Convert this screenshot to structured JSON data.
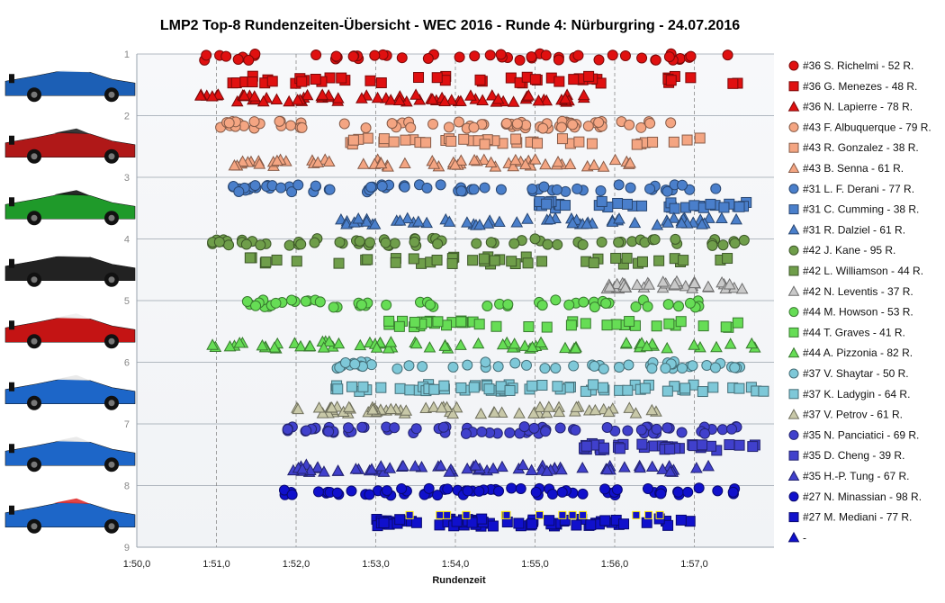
{
  "chart_data": {
    "type": "scatter",
    "title": "LMP2  Top-8  Rundenzeiten-Übersicht   - WEC 2016  - Runde  4:  Nürburgring   - 24.07.2016",
    "xlabel": "Rundenzeit",
    "ylabel": "",
    "xlim": [
      110.0,
      118.0
    ],
    "ylim": [
      1,
      9
    ],
    "x_ticks": [
      {
        "v": 110,
        "label": "1:50,0"
      },
      {
        "v": 111,
        "label": "1:51,0"
      },
      {
        "v": 112,
        "label": "1:52,0"
      },
      {
        "v": 113,
        "label": "1:53,0"
      },
      {
        "v": 114,
        "label": "1:54,0"
      },
      {
        "v": 115,
        "label": "1:55,0"
      },
      {
        "v": 116,
        "label": "1:56,0"
      },
      {
        "v": 117,
        "label": "1:57,0"
      }
    ],
    "y_ticks": [
      {
        "v": 1,
        "label": "1"
      },
      {
        "v": 2,
        "label": "2"
      },
      {
        "v": 3,
        "label": "3"
      },
      {
        "v": 4,
        "label": "4"
      },
      {
        "v": 5,
        "label": "5"
      },
      {
        "v": 6,
        "label": "6"
      },
      {
        "v": 7,
        "label": "7"
      },
      {
        "v": 8,
        "label": "8"
      },
      {
        "v": 9,
        "label": "9"
      }
    ],
    "grid": {
      "vertical": "dashed",
      "horizontal": "solid"
    },
    "legend_position": "right",
    "series": [
      {
        "name": "#36 S. Richelmi - 52 R.",
        "marker": "circle",
        "color": "#e01010",
        "y": 1.05,
        "laps": 52,
        "range": [
          110.85,
          117.45
        ]
      },
      {
        "name": "#36 G. Menezes - 48 R.",
        "marker": "square",
        "color": "#e01010",
        "y": 1.42,
        "laps": 48,
        "range": [
          111.2,
          117.6
        ]
      },
      {
        "name": "#36 N. Lapierre - 78 R.",
        "marker": "triangle",
        "color": "#e01010",
        "y": 1.72,
        "laps": 78,
        "range": [
          110.8,
          115.65
        ]
      },
      {
        "name": "#43 F. Albuquerque - 79 R.",
        "marker": "circle",
        "color": "#f4a582",
        "y": 2.15,
        "laps": 79,
        "range": [
          111.05,
          116.75
        ]
      },
      {
        "name": "#43 R. Gonzalez - 38 R.",
        "marker": "square",
        "color": "#f4a582",
        "y": 2.42,
        "laps": 38,
        "range": [
          112.45,
          117.1
        ]
      },
      {
        "name": "#43 B. Senna - 61 R.",
        "marker": "triangle",
        "color": "#f4a582",
        "y": 2.77,
        "laps": 61,
        "range": [
          111.2,
          116.3
        ]
      },
      {
        "name": "#31 L. F. Derani - 77 R.",
        "marker": "circle",
        "color": "#4a7fcb",
        "y": 3.18,
        "laps": 77,
        "range": [
          111.2,
          117.3
        ]
      },
      {
        "name": "#31 C. Cumming - 38 R.",
        "marker": "square",
        "color": "#4a7fcb",
        "y": 3.45,
        "laps": 38,
        "range": [
          115.05,
          117.75
        ]
      },
      {
        "name": "#31 R. Dalziel - 61 R.",
        "marker": "triangle",
        "color": "#4a7fcb",
        "y": 3.72,
        "laps": 61,
        "range": [
          112.55,
          117.65
        ]
      },
      {
        "name": "#42 J. Kane - 95 R.",
        "marker": "circle",
        "color": "#6f9e4a",
        "y": 4.05,
        "laps": 95,
        "range": [
          110.95,
          117.7
        ]
      },
      {
        "name": "#42 L. Williamson - 44 R.",
        "marker": "square",
        "color": "#6f9e4a",
        "y": 4.35,
        "laps": 44,
        "range": [
          111.4,
          117.55
        ]
      },
      {
        "name": "#42 N. Leventis - 37 R.",
        "marker": "triangle",
        "color": "#c9c9c9",
        "y": 4.75,
        "laps": 37,
        "range": [
          115.9,
          117.6
        ]
      },
      {
        "name": "#44 M. Howson - 53 R.",
        "marker": "circle",
        "color": "#66dd55",
        "y": 5.05,
        "laps": 53,
        "range": [
          111.35,
          117.2
        ]
      },
      {
        "name": "#44 T. Graves - 41 R.",
        "marker": "square",
        "color": "#66dd55",
        "y": 5.38,
        "laps": 41,
        "range": [
          113.1,
          117.65
        ]
      },
      {
        "name": "#44 A. Pizzonia - 82 R.",
        "marker": "triangle",
        "color": "#66dd55",
        "y": 5.72,
        "laps": 82,
        "range": [
          110.95,
          117.95
        ]
      },
      {
        "name": "#37 V. Shaytar - 50 R.",
        "marker": "circle",
        "color": "#7ec8d8",
        "y": 6.05,
        "laps": 50,
        "range": [
          112.5,
          117.6
        ]
      },
      {
        "name": "#37 K. Ladygin - 64 R.",
        "marker": "square",
        "color": "#7ec8d8",
        "y": 6.42,
        "laps": 64,
        "range": [
          112.5,
          117.95
        ]
      },
      {
        "name": "#37 V. Petrov - 61 R.",
        "marker": "triangle",
        "color": "#c8c8a8",
        "y": 6.78,
        "laps": 61,
        "range": [
          112.0,
          116.6
        ]
      },
      {
        "name": "#35 N. Panciatici - 69 R.",
        "marker": "circle",
        "color": "#4040cc",
        "y": 7.1,
        "laps": 69,
        "range": [
          111.85,
          117.75
        ]
      },
      {
        "name": "#35 D. Cheng - 39 R.",
        "marker": "square",
        "color": "#4040cc",
        "y": 7.38,
        "laps": 39,
        "range": [
          115.6,
          117.8
        ]
      },
      {
        "name": "#35 H.-P. Tung - 67 R.",
        "marker": "triangle",
        "color": "#4040cc",
        "y": 7.72,
        "laps": 67,
        "range": [
          111.95,
          117.2
        ]
      },
      {
        "name": "#27 N. Minassian - 98 R.",
        "marker": "circle",
        "color": "#1010cc",
        "y": 8.1,
        "laps": 98,
        "range": [
          111.85,
          117.55
        ]
      },
      {
        "name": "#27 M. Mediani - 77 R.",
        "marker": "square",
        "color": "#1010cc",
        "y": 8.6,
        "laps": 77,
        "range": [
          113.0,
          116.95
        ]
      },
      {
        "name": "-",
        "marker": "triangle",
        "color": "#1010cc",
        "y": null,
        "laps": 0,
        "range": null
      }
    ]
  }
}
